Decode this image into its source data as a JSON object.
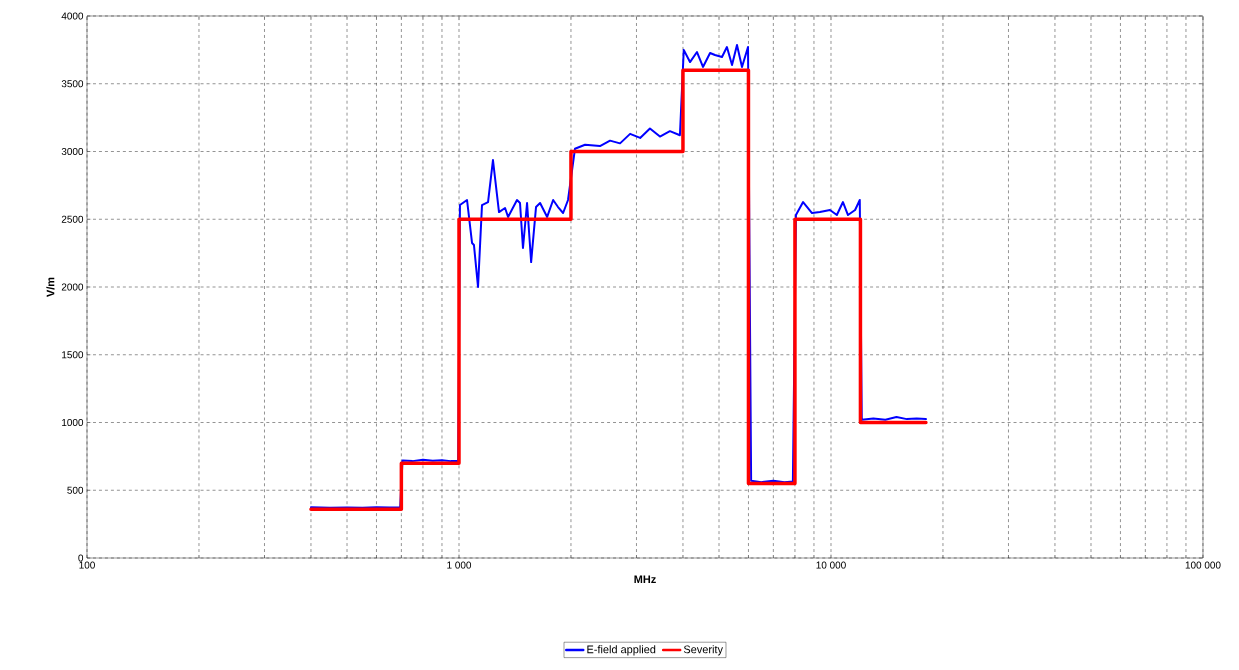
{
  "chart_data": {
    "type": "line",
    "xlabel": "MHz",
    "ylabel": "V/m",
    "log": "x",
    "xlim": [
      100,
      100000
    ],
    "ylim": [
      0,
      4000
    ],
    "xticks": [
      100,
      {
        "value": 1000,
        "label": "1 000"
      },
      {
        "value": 10000,
        "label": "10 000"
      },
      {
        "value": 100000,
        "label": "100 000"
      }
    ],
    "yticks": [
      0,
      500,
      1000,
      1500,
      2000,
      2500,
      3000,
      3500,
      4000
    ],
    "grid": true,
    "legend": "bottom",
    "marker": "none",
    "line_style": "solid",
    "series": [
      {
        "name": "E-field applied",
        "color": "#0000ff",
        "x": [
          400,
          450,
          500,
          550,
          600,
          650,
          695,
          705,
          750,
          800,
          850,
          900,
          950,
          995,
          1006,
          1051,
          1084,
          1097,
          1125,
          1153,
          1197,
          1234,
          1281,
          1330,
          1355,
          1432,
          1459,
          1486,
          1524,
          1563,
          1611,
          1652,
          1726,
          1791,
          1846,
          1905,
          1964,
          2050,
          2182,
          2393,
          2547,
          2710,
          2884,
          3069,
          3261,
          3469,
          3690,
          3926,
          4020,
          4178,
          4363,
          4528,
          4731,
          4876,
          5093,
          5251,
          5420,
          5589,
          5765,
          5984,
          6100,
          6500,
          7000,
          7500,
          7900,
          8050,
          8414,
          8892,
          9339,
          9937,
          10370,
          10770,
          11110,
          11610,
          11950,
          12100,
          13000,
          14000,
          15000,
          16000,
          17000,
          18000
        ],
        "values": [
          375,
          370,
          372,
          370,
          375,
          372,
          375,
          720,
          715,
          725,
          718,
          722,
          715,
          715,
          2605,
          2642,
          2325,
          2310,
          2000,
          2605,
          2627,
          2937,
          2553,
          2583,
          2517,
          2642,
          2620,
          2288,
          2620,
          2184,
          2590,
          2620,
          2517,
          2642,
          2590,
          2546,
          2642,
          3020,
          3050,
          3040,
          3080,
          3060,
          3130,
          3100,
          3170,
          3110,
          3150,
          3120,
          3750,
          3660,
          3734,
          3624,
          3727,
          3712,
          3697,
          3771,
          3638,
          3786,
          3624,
          3771,
          570,
          560,
          570,
          560,
          565,
          2531,
          2627,
          2546,
          2553,
          2568,
          2531,
          2627,
          2531,
          2568,
          2642,
          1020,
          1030,
          1020,
          1040,
          1025,
          1030,
          1025
        ]
      },
      {
        "name": "Severity",
        "color": "#ff0000",
        "x": [
          400,
          700,
          700,
          1000,
          1000,
          2000,
          2000,
          4000,
          4000,
          6000,
          6000,
          8000,
          8000,
          12000,
          12000,
          18000
        ],
        "values": [
          360,
          360,
          700,
          700,
          2500,
          2500,
          3000,
          3000,
          3600,
          3600,
          550,
          550,
          2500,
          2500,
          1000,
          1000
        ]
      }
    ]
  }
}
